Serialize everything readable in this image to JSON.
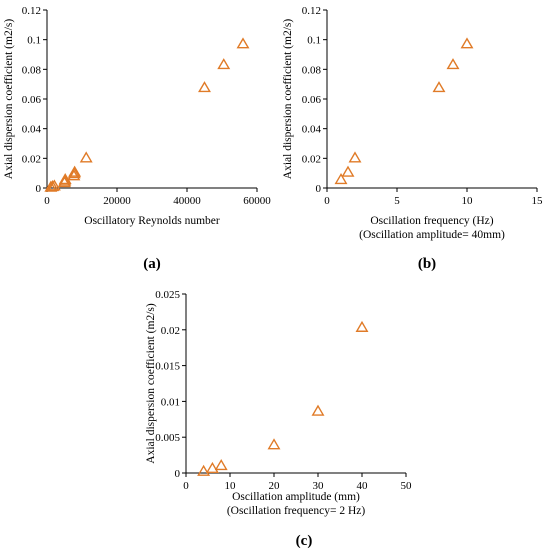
{
  "chart_data": [
    {
      "type": "scatter",
      "panel_label": "(a)",
      "xlabel": "Oscillatory Reynolds number",
      "xlabel2": "",
      "ylabel": "Axial dispersion coefficient (m2/s)",
      "xlim": [
        0,
        60000
      ],
      "ylim": [
        0,
        0.12
      ],
      "xticks": [
        0,
        20000,
        40000,
        60000
      ],
      "yticks": [
        0,
        0.02,
        0.04,
        0.06,
        0.08,
        0.1,
        0.12
      ],
      "xtick_labels": [
        "0",
        "20000",
        "40000",
        "60000"
      ],
      "ytick_labels": [
        "0",
        "0.02",
        "0.04",
        "0.06",
        "0.08",
        "0.1",
        "0.12"
      ],
      "marker": "open-triangle",
      "marker_color": "#E07B28",
      "grid": false,
      "legend": "none",
      "series": [
        {
          "x": [
            1100,
            1600,
            2100,
            5000,
            5100,
            5200,
            7700,
            7800,
            7900,
            11200,
            45000,
            50500,
            56000
          ],
          "y": [
            0.0004,
            0.0008,
            0.0012,
            0.0035,
            0.0045,
            0.0055,
            0.008,
            0.0095,
            0.0105,
            0.0201,
            0.0675,
            0.083,
            0.097
          ]
        }
      ]
    },
    {
      "type": "scatter",
      "panel_label": "(b)",
      "xlabel": "Oscillation frequency (Hz)",
      "xlabel2": "(Oscillation amplitude= 40mm)",
      "ylabel": "Axial dispersion coefficient (m2/s)",
      "xlim": [
        0,
        15
      ],
      "ylim": [
        0,
        0.12
      ],
      "xticks": [
        0,
        5,
        10,
        15
      ],
      "yticks": [
        0,
        0.02,
        0.04,
        0.06,
        0.08,
        0.1,
        0.12
      ],
      "xtick_labels": [
        "0",
        "5",
        "10",
        "15"
      ],
      "ytick_labels": [
        "0",
        "0.02",
        "0.04",
        "0.06",
        "0.08",
        "0.1",
        "0.12"
      ],
      "marker": "open-triangle",
      "marker_color": "#E07B28",
      "grid": false,
      "legend": "none",
      "series": [
        {
          "x": [
            1,
            1.5,
            2,
            8,
            9,
            10
          ],
          "y": [
            0.0055,
            0.0105,
            0.0201,
            0.0675,
            0.083,
            0.097
          ]
        }
      ]
    },
    {
      "type": "scatter",
      "panel_label": "(c)",
      "xlabel": "Oscillation amplitude (mm)",
      "xlabel2": "(Oscillation frequency= 2 Hz)",
      "ylabel": "Axial dispersion coefficient (m2/s)",
      "xlim": [
        0,
        50
      ],
      "ylim": [
        0,
        0.025
      ],
      "xticks": [
        0,
        10,
        20,
        30,
        40,
        50
      ],
      "yticks": [
        0,
        0.005,
        0.01,
        0.015,
        0.02,
        0.025
      ],
      "xtick_labels": [
        "0",
        "10",
        "20",
        "30",
        "40",
        "50"
      ],
      "ytick_labels": [
        "0",
        "0.005",
        "0.01",
        "0.015",
        "0.02",
        "0.025"
      ],
      "marker": "open-triangle",
      "marker_color": "#E07B28",
      "grid": false,
      "legend": "none",
      "series": [
        {
          "x": [
            4,
            6,
            8,
            20,
            30,
            40
          ],
          "y": [
            0.0002,
            0.0006,
            0.001,
            0.0039,
            0.0086,
            0.0203
          ]
        }
      ]
    }
  ]
}
